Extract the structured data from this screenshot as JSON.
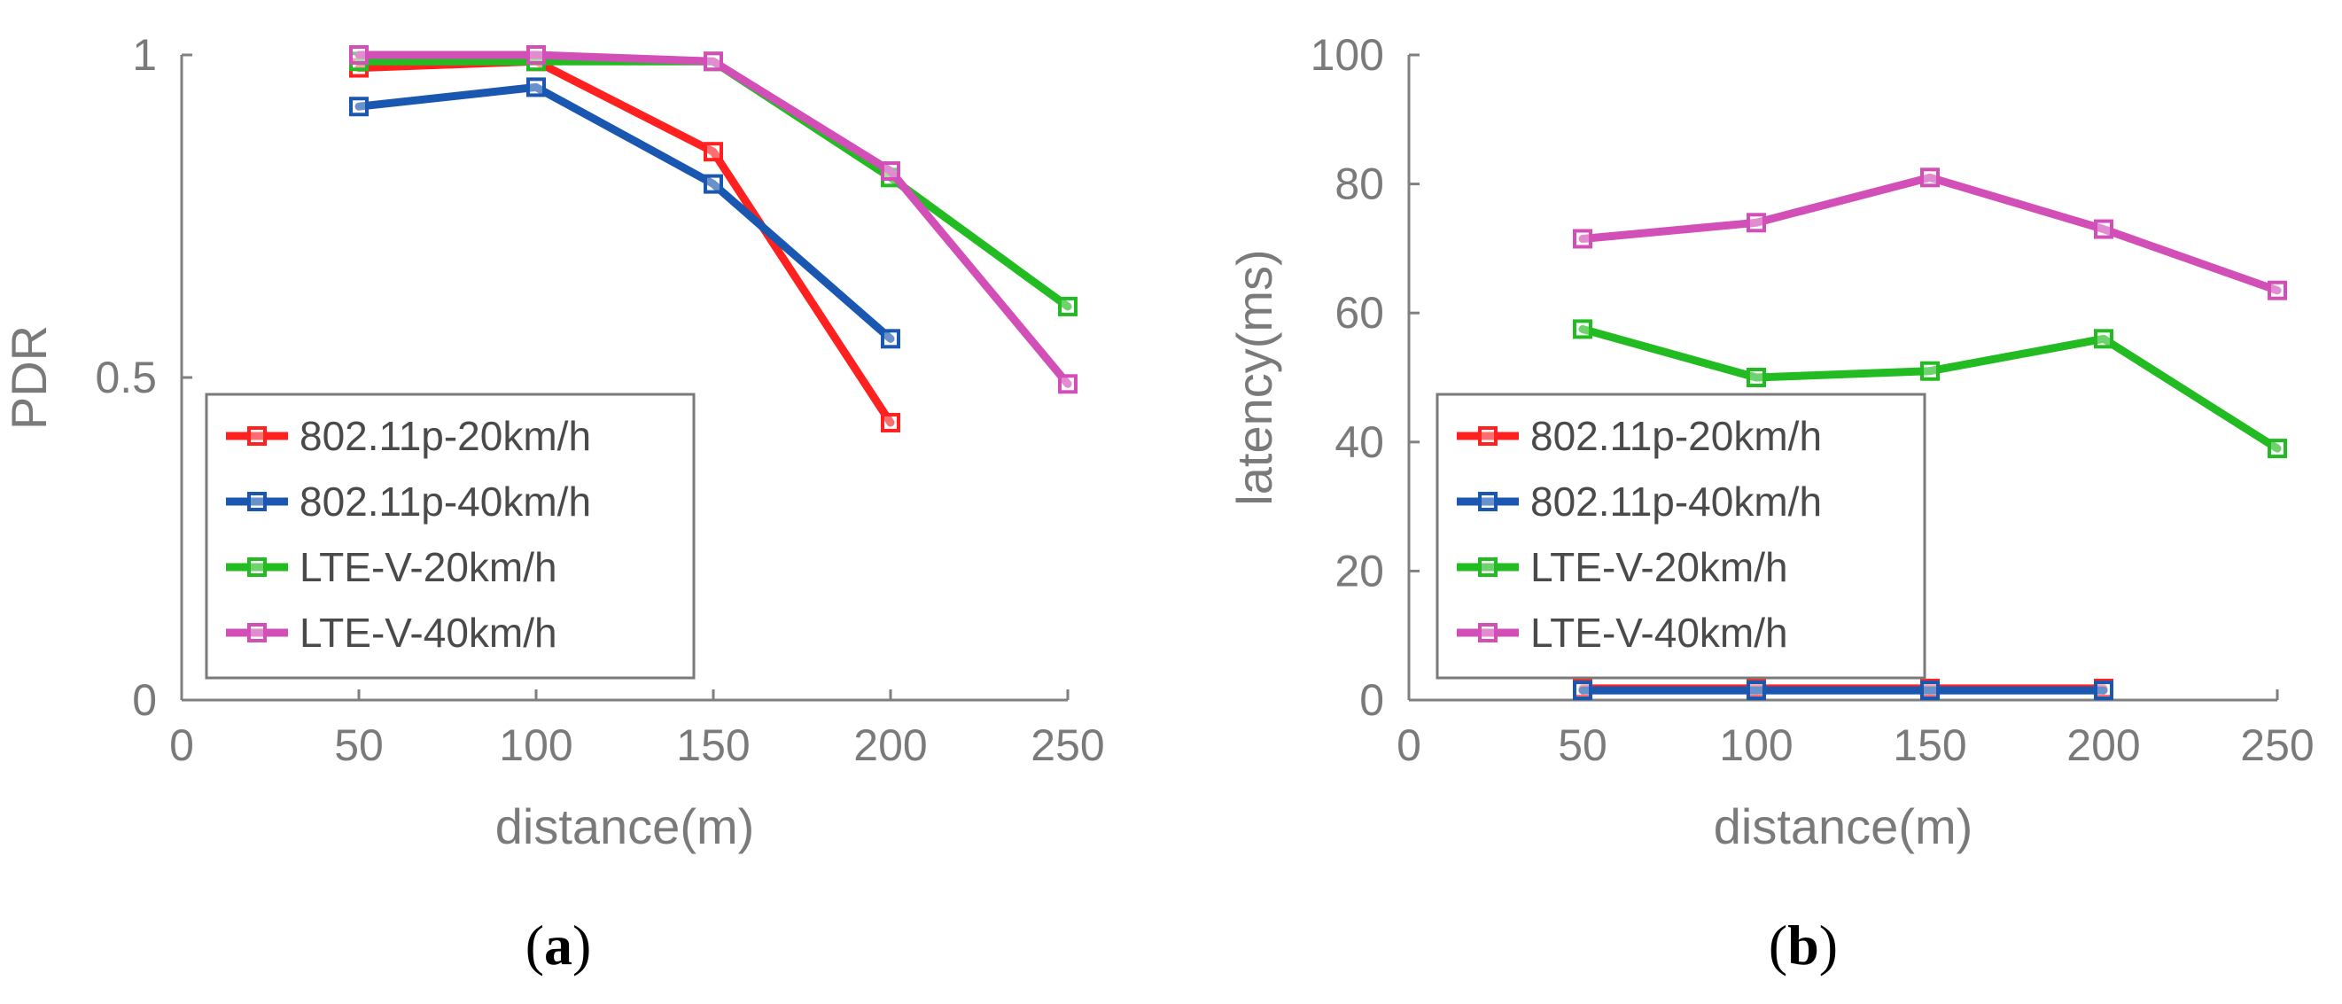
{
  "colors": {
    "s1": "#ff2020",
    "s2": "#1a57b0",
    "s3": "#22bb22",
    "s4": "#d24fb8"
  },
  "chart_data": [
    {
      "type": "line",
      "caption_label": "a",
      "title": "",
      "xlabel": "distance(m)",
      "ylabel": "PDR",
      "xlim": [
        0,
        250
      ],
      "ylim": [
        0,
        1
      ],
      "xticks": [
        0,
        50,
        100,
        150,
        200,
        250
      ],
      "yticks": [
        0,
        0.5,
        1
      ],
      "xtick_labels": [
        "0",
        "50",
        "100",
        "150",
        "200",
        "250"
      ],
      "ytick_labels": [
        "0",
        "0.5",
        "1"
      ],
      "legend_position": "left-middle",
      "series": [
        {
          "name": "802.11p-20km/h",
          "color": "#ff2020",
          "x": [
            50,
            100,
            150,
            200
          ],
          "values": [
            0.98,
            0.99,
            0.85,
            0.43
          ]
        },
        {
          "name": "802.11p-40km/h",
          "color": "#1a57b0",
          "x": [
            50,
            100,
            150,
            200
          ],
          "values": [
            0.92,
            0.95,
            0.8,
            0.56
          ]
        },
        {
          "name": "LTE-V-20km/h",
          "color": "#22bb22",
          "x": [
            50,
            100,
            150,
            200,
            250
          ],
          "values": [
            0.99,
            0.99,
            0.99,
            0.81,
            0.61
          ]
        },
        {
          "name": "LTE-V-40km/h",
          "color": "#d24fb8",
          "x": [
            50,
            100,
            150,
            200,
            250
          ],
          "values": [
            1.0,
            1.0,
            0.99,
            0.82,
            0.49
          ]
        }
      ]
    },
    {
      "type": "line",
      "caption_label": "b",
      "title": "",
      "xlabel": "distance(m)",
      "ylabel": "latency(ms)",
      "xlim": [
        0,
        250
      ],
      "ylim": [
        0,
        100
      ],
      "xticks": [
        0,
        50,
        100,
        150,
        200,
        250
      ],
      "yticks": [
        0,
        20,
        40,
        60,
        80,
        100
      ],
      "xtick_labels": [
        "0",
        "50",
        "100",
        "150",
        "200",
        "250"
      ],
      "ytick_labels": [
        "0",
        "20",
        "40",
        "60",
        "80",
        "100"
      ],
      "legend_position": "left-bottom",
      "series": [
        {
          "name": "802.11p-20km/h",
          "color": "#ff2020",
          "x": [
            50,
            100,
            150,
            200
          ],
          "values": [
            1.8,
            1.8,
            1.8,
            1.8
          ]
        },
        {
          "name": "802.11p-40km/h",
          "color": "#1a57b0",
          "x": [
            50,
            100,
            150,
            200
          ],
          "values": [
            1.5,
            1.5,
            1.5,
            1.5
          ]
        },
        {
          "name": "LTE-V-20km/h",
          "color": "#22bb22",
          "x": [
            50,
            100,
            150,
            200,
            250
          ],
          "values": [
            57.5,
            50,
            51,
            56,
            39
          ]
        },
        {
          "name": "LTE-V-40km/h",
          "color": "#d24fb8",
          "x": [
            50,
            100,
            150,
            200,
            250
          ],
          "values": [
            71.5,
            74,
            81,
            73,
            63.5
          ]
        }
      ]
    }
  ]
}
